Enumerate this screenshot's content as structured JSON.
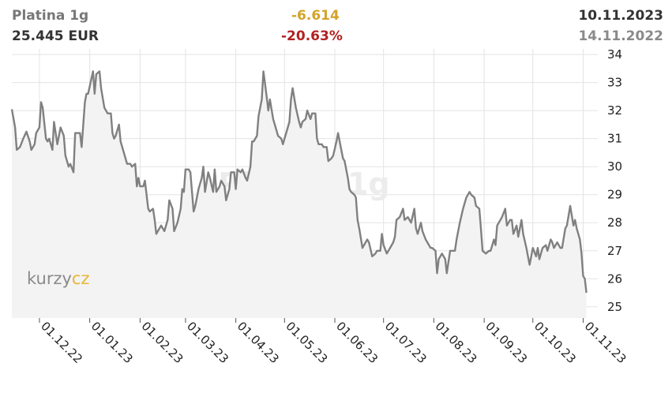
{
  "header": {
    "name": "Platina 1g",
    "price": "25.445 EUR",
    "change_abs": "-6.614",
    "change_pct": "-20.63%",
    "date_end": "10.11.2023",
    "date_start": "14.11.2022"
  },
  "watermark": "Platina 1g",
  "logo": {
    "part1": "kurzy",
    "part2": "cz"
  },
  "colors": {
    "line": "#808080",
    "fill": "#f3f3f3",
    "grid": "#e3e3e3",
    "change_abs": "#d4a32a",
    "change_pct": "#b22222",
    "logo_accent": "#e8b63a"
  },
  "chart_data": {
    "type": "area",
    "title": "Platina 1g",
    "xlabel": "",
    "ylabel": "",
    "ylim": [
      24.6,
      34.2
    ],
    "xlim": [
      "2022-11-14",
      "2023-11-10"
    ],
    "y_ticks": [
      25,
      26,
      27,
      28,
      29,
      30,
      31,
      32,
      33,
      34
    ],
    "x_ticks": [
      {
        "date": "2022-12-01",
        "label": "01.12.22"
      },
      {
        "date": "2023-01-01",
        "label": "01.01.23"
      },
      {
        "date": "2023-02-01",
        "label": "01.02.23"
      },
      {
        "date": "2023-03-01",
        "label": "01.03.23"
      },
      {
        "date": "2023-04-01",
        "label": "01.04.23"
      },
      {
        "date": "2023-05-01",
        "label": "01.05.23"
      },
      {
        "date": "2023-06-01",
        "label": "01.06.23"
      },
      {
        "date": "2023-07-01",
        "label": "01.07.23"
      },
      {
        "date": "2023-08-01",
        "label": "01.08.23"
      },
      {
        "date": "2023-09-01",
        "label": "01.09.23"
      },
      {
        "date": "2023-10-01",
        "label": "01.10.23"
      },
      {
        "date": "2023-11-01",
        "label": "01.11.23"
      }
    ],
    "grid": true,
    "series": [
      {
        "points": [
          [
            "2022-11-14",
            32.05
          ],
          [
            "2022-11-16",
            31.4
          ],
          [
            "2022-11-17",
            30.6
          ],
          [
            "2022-11-19",
            30.7
          ],
          [
            "2022-11-21",
            31.0
          ],
          [
            "2022-11-23",
            31.25
          ],
          [
            "2022-11-25",
            30.9
          ],
          [
            "2022-11-26",
            30.6
          ],
          [
            "2022-11-28",
            30.8
          ],
          [
            "2022-11-29",
            31.2
          ],
          [
            "2022-12-01",
            31.4
          ],
          [
            "2022-12-02",
            32.3
          ],
          [
            "2022-12-03",
            32.1
          ],
          [
            "2022-12-05",
            31.0
          ],
          [
            "2022-12-06",
            30.9
          ],
          [
            "2022-12-07",
            31.0
          ],
          [
            "2022-12-09",
            30.6
          ],
          [
            "2022-12-10",
            31.6
          ],
          [
            "2022-12-12",
            30.8
          ],
          [
            "2022-12-14",
            31.4
          ],
          [
            "2022-12-16",
            31.1
          ],
          [
            "2022-12-17",
            30.4
          ],
          [
            "2022-12-19",
            30.0
          ],
          [
            "2022-12-20",
            30.1
          ],
          [
            "2022-12-22",
            29.8
          ],
          [
            "2022-12-23",
            31.2
          ],
          [
            "2022-12-26",
            31.2
          ],
          [
            "2022-12-27",
            30.7
          ],
          [
            "2022-12-29",
            32.3
          ],
          [
            "2022-12-30",
            32.6
          ],
          [
            "2022-12-31",
            32.6
          ],
          [
            "2023-01-03",
            33.4
          ],
          [
            "2023-01-04",
            32.6
          ],
          [
            "2023-01-05",
            33.3
          ],
          [
            "2023-01-07",
            33.4
          ],
          [
            "2023-01-08",
            32.8
          ],
          [
            "2023-01-10",
            32.1
          ],
          [
            "2023-01-12",
            31.9
          ],
          [
            "2023-01-14",
            31.9
          ],
          [
            "2023-01-15",
            31.2
          ],
          [
            "2023-01-16",
            31.0
          ],
          [
            "2023-01-17",
            31.1
          ],
          [
            "2023-01-19",
            31.5
          ],
          [
            "2023-01-20",
            30.9
          ],
          [
            "2023-01-23",
            30.3
          ],
          [
            "2023-01-24",
            30.1
          ],
          [
            "2023-01-26",
            30.1
          ],
          [
            "2023-01-27",
            30.0
          ],
          [
            "2023-01-29",
            30.1
          ],
          [
            "2023-01-30",
            29.3
          ],
          [
            "2023-01-31",
            29.6
          ],
          [
            "2023-02-01",
            29.3
          ],
          [
            "2023-02-03",
            29.3
          ],
          [
            "2023-02-04",
            29.5
          ],
          [
            "2023-02-06",
            28.5
          ],
          [
            "2023-02-07",
            28.4
          ],
          [
            "2023-02-09",
            28.5
          ],
          [
            "2023-02-10",
            28.1
          ],
          [
            "2023-02-11",
            27.6
          ],
          [
            "2023-02-13",
            27.8
          ],
          [
            "2023-02-14",
            27.9
          ],
          [
            "2023-02-16",
            27.7
          ],
          [
            "2023-02-18",
            28.1
          ],
          [
            "2023-02-19",
            28.8
          ],
          [
            "2023-02-21",
            28.5
          ],
          [
            "2023-02-22",
            27.7
          ],
          [
            "2023-02-24",
            28.0
          ],
          [
            "2023-02-26",
            28.5
          ],
          [
            "2023-02-27",
            29.2
          ],
          [
            "2023-02-28",
            29.1
          ],
          [
            "2023-03-01",
            29.9
          ],
          [
            "2023-03-03",
            29.9
          ],
          [
            "2023-03-04",
            29.8
          ],
          [
            "2023-03-06",
            28.4
          ],
          [
            "2023-03-07",
            28.6
          ],
          [
            "2023-03-09",
            29.2
          ],
          [
            "2023-03-11",
            29.6
          ],
          [
            "2023-03-12",
            30.0
          ],
          [
            "2023-03-13",
            29.1
          ],
          [
            "2023-03-15",
            29.8
          ],
          [
            "2023-03-16",
            29.6
          ],
          [
            "2023-03-18",
            29.1
          ],
          [
            "2023-03-19",
            29.9
          ],
          [
            "2023-03-20",
            29.1
          ],
          [
            "2023-03-22",
            29.3
          ],
          [
            "2023-03-23",
            29.5
          ],
          [
            "2023-03-25",
            29.3
          ],
          [
            "2023-03-26",
            28.8
          ],
          [
            "2023-03-28",
            29.2
          ],
          [
            "2023-03-29",
            29.8
          ],
          [
            "2023-03-31",
            29.8
          ],
          [
            "2023-04-01",
            29.2
          ],
          [
            "2023-04-02",
            29.9
          ],
          [
            "2023-04-04",
            29.8
          ],
          [
            "2023-04-05",
            29.9
          ],
          [
            "2023-04-07",
            29.6
          ],
          [
            "2023-04-08",
            29.5
          ],
          [
            "2023-04-10",
            30.0
          ],
          [
            "2023-04-11",
            30.9
          ],
          [
            "2023-04-12",
            30.9
          ],
          [
            "2023-04-14",
            31.1
          ],
          [
            "2023-04-15",
            31.8
          ],
          [
            "2023-04-17",
            32.4
          ],
          [
            "2023-04-18",
            33.4
          ],
          [
            "2023-04-20",
            32.5
          ],
          [
            "2023-04-21",
            32.0
          ],
          [
            "2023-04-22",
            32.4
          ],
          [
            "2023-04-24",
            31.7
          ],
          [
            "2023-04-25",
            31.5
          ],
          [
            "2023-04-27",
            31.1
          ],
          [
            "2023-04-29",
            31.0
          ],
          [
            "2023-04-30",
            30.8
          ],
          [
            "2023-05-01",
            31.0
          ],
          [
            "2023-05-02",
            31.2
          ],
          [
            "2023-05-04",
            31.6
          ],
          [
            "2023-05-05",
            32.4
          ],
          [
            "2023-05-06",
            32.8
          ],
          [
            "2023-05-08",
            32.1
          ],
          [
            "2023-05-10",
            31.6
          ],
          [
            "2023-05-11",
            31.4
          ],
          [
            "2023-05-12",
            31.6
          ],
          [
            "2023-05-14",
            31.7
          ],
          [
            "2023-05-15",
            32.0
          ],
          [
            "2023-05-17",
            31.7
          ],
          [
            "2023-05-18",
            31.9
          ],
          [
            "2023-05-20",
            31.9
          ],
          [
            "2023-05-21",
            31.0
          ],
          [
            "2023-05-22",
            30.8
          ],
          [
            "2023-05-24",
            30.8
          ],
          [
            "2023-05-25",
            30.7
          ],
          [
            "2023-05-27",
            30.7
          ],
          [
            "2023-05-28",
            30.2
          ],
          [
            "2023-05-30",
            30.3
          ],
          [
            "2023-05-31",
            30.4
          ],
          [
            "2023-06-02",
            30.9
          ],
          [
            "2023-06-03",
            31.2
          ],
          [
            "2023-06-05",
            30.6
          ],
          [
            "2023-06-06",
            30.3
          ],
          [
            "2023-06-07",
            30.2
          ],
          [
            "2023-06-09",
            29.6
          ],
          [
            "2023-06-10",
            29.2
          ],
          [
            "2023-06-11",
            29.1
          ],
          [
            "2023-06-13",
            29.0
          ],
          [
            "2023-06-14",
            28.9
          ],
          [
            "2023-06-15",
            28.1
          ],
          [
            "2023-06-16",
            27.8
          ],
          [
            "2023-06-18",
            27.1
          ],
          [
            "2023-06-19",
            27.2
          ],
          [
            "2023-06-21",
            27.4
          ],
          [
            "2023-06-22",
            27.3
          ],
          [
            "2023-06-24",
            26.8
          ],
          [
            "2023-06-26",
            26.9
          ],
          [
            "2023-06-27",
            27.0
          ],
          [
            "2023-06-29",
            27.0
          ],
          [
            "2023-06-30",
            27.6
          ],
          [
            "2023-07-01",
            27.2
          ],
          [
            "2023-07-03",
            26.9
          ],
          [
            "2023-07-04",
            27.0
          ],
          [
            "2023-07-06",
            27.2
          ],
          [
            "2023-07-07",
            27.3
          ],
          [
            "2023-07-08",
            27.5
          ],
          [
            "2023-07-09",
            28.1
          ],
          [
            "2023-07-11",
            28.2
          ],
          [
            "2023-07-13",
            28.5
          ],
          [
            "2023-07-14",
            28.1
          ],
          [
            "2023-07-16",
            28.2
          ],
          [
            "2023-07-18",
            28.0
          ],
          [
            "2023-07-20",
            28.5
          ],
          [
            "2023-07-21",
            27.8
          ],
          [
            "2023-07-22",
            27.6
          ],
          [
            "2023-07-24",
            28.0
          ],
          [
            "2023-07-25",
            27.7
          ],
          [
            "2023-07-27",
            27.4
          ],
          [
            "2023-07-28",
            27.3
          ],
          [
            "2023-07-30",
            27.1
          ],
          [
            "2023-07-31",
            27.1
          ],
          [
            "2023-08-02",
            27.0
          ],
          [
            "2023-08-03",
            26.2
          ],
          [
            "2023-08-04",
            26.7
          ],
          [
            "2023-08-06",
            26.9
          ],
          [
            "2023-08-08",
            26.7
          ],
          [
            "2023-08-09",
            26.2
          ],
          [
            "2023-08-11",
            27.0
          ],
          [
            "2023-08-12",
            27.0
          ],
          [
            "2023-08-14",
            27.0
          ],
          [
            "2023-08-15",
            27.4
          ],
          [
            "2023-08-17",
            28.0
          ],
          [
            "2023-08-19",
            28.5
          ],
          [
            "2023-08-21",
            28.9
          ],
          [
            "2023-08-23",
            29.1
          ],
          [
            "2023-08-24",
            29.0
          ],
          [
            "2023-08-26",
            28.9
          ],
          [
            "2023-08-27",
            28.6
          ],
          [
            "2023-08-29",
            28.5
          ],
          [
            "2023-08-30",
            27.8
          ],
          [
            "2023-08-31",
            27.0
          ],
          [
            "2023-09-02",
            26.9
          ],
          [
            "2023-09-04",
            27.0
          ],
          [
            "2023-09-05",
            27.0
          ],
          [
            "2023-09-07",
            27.4
          ],
          [
            "2023-09-08",
            27.2
          ],
          [
            "2023-09-09",
            27.9
          ],
          [
            "2023-09-11",
            28.1
          ],
          [
            "2023-09-12",
            28.2
          ],
          [
            "2023-09-14",
            28.5
          ],
          [
            "2023-09-15",
            27.9
          ],
          [
            "2023-09-17",
            28.1
          ],
          [
            "2023-09-18",
            28.1
          ],
          [
            "2023-09-19",
            27.6
          ],
          [
            "2023-09-21",
            27.9
          ],
          [
            "2023-09-22",
            27.5
          ],
          [
            "2023-09-24",
            28.1
          ],
          [
            "2023-09-25",
            27.6
          ],
          [
            "2023-09-27",
            27.1
          ],
          [
            "2023-09-28",
            26.8
          ],
          [
            "2023-09-29",
            26.5
          ],
          [
            "2023-10-01",
            27.1
          ],
          [
            "2023-10-03",
            26.8
          ],
          [
            "2023-10-04",
            27.1
          ],
          [
            "2023-10-05",
            26.7
          ],
          [
            "2023-10-07",
            27.1
          ],
          [
            "2023-10-09",
            27.2
          ],
          [
            "2023-10-10",
            27.0
          ],
          [
            "2023-10-12",
            27.4
          ],
          [
            "2023-10-13",
            27.3
          ],
          [
            "2023-10-14",
            27.1
          ],
          [
            "2023-10-16",
            27.3
          ],
          [
            "2023-10-18",
            27.1
          ],
          [
            "2023-10-19",
            27.1
          ],
          [
            "2023-10-21",
            27.8
          ],
          [
            "2023-10-22",
            27.9
          ],
          [
            "2023-10-24",
            28.6
          ],
          [
            "2023-10-26",
            27.9
          ],
          [
            "2023-10-27",
            28.1
          ],
          [
            "2023-10-28",
            27.8
          ],
          [
            "2023-10-30",
            27.4
          ],
          [
            "2023-10-31",
            26.9
          ],
          [
            "2023-11-01",
            26.1
          ],
          [
            "2023-11-02",
            26.0
          ],
          [
            "2023-11-03",
            25.5
          ]
        ]
      }
    ]
  }
}
